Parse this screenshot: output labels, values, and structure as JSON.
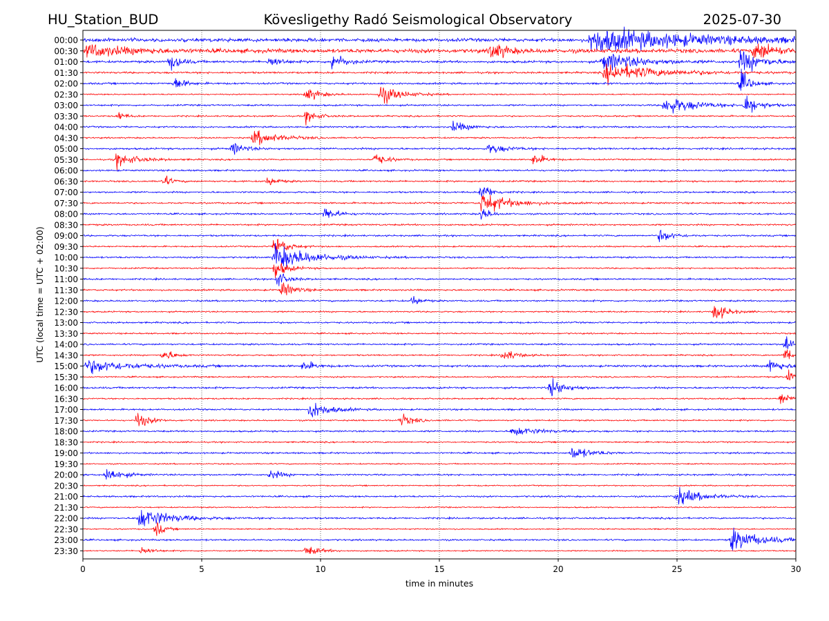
{
  "header": {
    "station": "HU_Station_BUD",
    "title": "Kövesligethy Radó Seismological Observatory",
    "date": "2025-07-30"
  },
  "chart_data": {
    "type": "line",
    "title": "Kövesligethy Radó Seismological Observatory",
    "xlabel": "time in minutes",
    "ylabel": "UTC (local time = UTC + 02:00)",
    "xlim": [
      0,
      30
    ],
    "xticks": [
      0,
      5,
      10,
      15,
      20,
      25,
      30
    ],
    "grid": "x-dotted",
    "legend": "none",
    "colors": [
      "#0000ff",
      "#ff0000"
    ],
    "rows": [
      "00:00",
      "00:30",
      "01:00",
      "01:30",
      "02:00",
      "02:30",
      "03:00",
      "03:30",
      "04:00",
      "04:30",
      "05:00",
      "05:30",
      "06:00",
      "06:30",
      "07:00",
      "07:30",
      "08:00",
      "08:30",
      "09:00",
      "09:30",
      "10:00",
      "10:30",
      "11:00",
      "11:30",
      "12:00",
      "12:30",
      "13:00",
      "13:30",
      "14:00",
      "14:30",
      "15:00",
      "15:30",
      "16:00",
      "16:30",
      "17:00",
      "17:30",
      "18:00",
      "18:30",
      "19:00",
      "19:30",
      "20:00",
      "20:30",
      "21:00",
      "21:30",
      "22:00",
      "22:30",
      "23:00",
      "23:30"
    ],
    "noise_level": [
      1.6,
      1.9,
      1.1,
      0.9,
      0.9,
      0.6,
      0.8,
      0.7,
      0.8,
      0.7,
      0.9,
      0.7,
      0.8,
      0.8,
      0.8,
      0.8,
      0.8,
      0.8,
      0.8,
      0.7,
      0.8,
      0.7,
      0.8,
      0.8,
      0.8,
      0.7,
      0.8,
      0.7,
      0.8,
      0.7,
      1.0,
      0.7,
      0.9,
      0.7,
      0.8,
      0.7,
      0.8,
      0.7,
      0.8,
      0.6,
      0.8,
      0.6,
      0.8,
      0.6,
      0.8,
      0.6,
      0.8,
      0.6
    ],
    "events": [
      {
        "row": 0,
        "t": 21.3,
        "amp": 4.0,
        "dur": 9.0
      },
      {
        "row": 1,
        "t": 0.1,
        "amp": 2.0,
        "dur": 3.5
      },
      {
        "row": 1,
        "t": 17.1,
        "amp": 3.0,
        "dur": 1.2
      },
      {
        "row": 1,
        "t": 28.2,
        "amp": 3.5,
        "dur": 1.5
      },
      {
        "row": 2,
        "t": 3.6,
        "amp": 3.0,
        "dur": 0.8
      },
      {
        "row": 2,
        "t": 7.8,
        "amp": 2.2,
        "dur": 0.8
      },
      {
        "row": 2,
        "t": 10.4,
        "amp": 3.0,
        "dur": 1.0
      },
      {
        "row": 2,
        "t": 21.8,
        "amp": 3.2,
        "dur": 3.0
      },
      {
        "row": 2,
        "t": 27.6,
        "amp": 3.5,
        "dur": 1.8
      },
      {
        "row": 3,
        "t": 21.9,
        "amp": 3.0,
        "dur": 4.5
      },
      {
        "row": 4,
        "t": 3.8,
        "amp": 2.0,
        "dur": 0.8
      },
      {
        "row": 4,
        "t": 27.6,
        "amp": 3.8,
        "dur": 0.8
      },
      {
        "row": 5,
        "t": 9.3,
        "amp": 2.2,
        "dur": 1.2
      },
      {
        "row": 5,
        "t": 12.4,
        "amp": 3.0,
        "dur": 1.8
      },
      {
        "row": 6,
        "t": 24.4,
        "amp": 3.0,
        "dur": 2.5
      },
      {
        "row": 6,
        "t": 27.8,
        "amp": 3.5,
        "dur": 1.0
      },
      {
        "row": 7,
        "t": 9.3,
        "amp": 2.0,
        "dur": 1.0
      },
      {
        "row": 7,
        "t": 1.4,
        "amp": 1.5,
        "dur": 0.6
      },
      {
        "row": 8,
        "t": 15.5,
        "amp": 1.8,
        "dur": 1.2
      },
      {
        "row": 9,
        "t": 7.1,
        "amp": 2.5,
        "dur": 2.0
      },
      {
        "row": 10,
        "t": 6.2,
        "amp": 2.0,
        "dur": 1.0
      },
      {
        "row": 10,
        "t": 17.0,
        "amp": 1.5,
        "dur": 1.5
      },
      {
        "row": 11,
        "t": 1.3,
        "amp": 2.2,
        "dur": 1.8
      },
      {
        "row": 11,
        "t": 12.2,
        "amp": 2.0,
        "dur": 1.0
      },
      {
        "row": 11,
        "t": 18.9,
        "amp": 2.2,
        "dur": 0.8
      },
      {
        "row": 13,
        "t": 3.3,
        "amp": 2.0,
        "dur": 0.6
      },
      {
        "row": 13,
        "t": 7.7,
        "amp": 1.5,
        "dur": 0.8
      },
      {
        "row": 14,
        "t": 16.7,
        "amp": 3.0,
        "dur": 0.8
      },
      {
        "row": 15,
        "t": 16.7,
        "amp": 3.5,
        "dur": 2.2
      },
      {
        "row": 16,
        "t": 10.1,
        "amp": 2.2,
        "dur": 1.0
      },
      {
        "row": 16,
        "t": 16.7,
        "amp": 2.5,
        "dur": 0.6
      },
      {
        "row": 18,
        "t": 24.2,
        "amp": 2.2,
        "dur": 1.0
      },
      {
        "row": 19,
        "t": 8.0,
        "amp": 3.5,
        "dur": 1.0
      },
      {
        "row": 20,
        "t": 8.0,
        "amp": 4.0,
        "dur": 3.0
      },
      {
        "row": 21,
        "t": 8.0,
        "amp": 3.0,
        "dur": 1.0
      },
      {
        "row": 22,
        "t": 8.1,
        "amp": 2.5,
        "dur": 0.8
      },
      {
        "row": 23,
        "t": 8.3,
        "amp": 2.5,
        "dur": 1.0
      },
      {
        "row": 24,
        "t": 13.8,
        "amp": 1.6,
        "dur": 0.6
      },
      {
        "row": 25,
        "t": 26.5,
        "amp": 3.0,
        "dur": 1.0
      },
      {
        "row": 28,
        "t": 29.5,
        "amp": 4.0,
        "dur": 0.5
      },
      {
        "row": 29,
        "t": 3.3,
        "amp": 2.2,
        "dur": 0.8
      },
      {
        "row": 29,
        "t": 17.6,
        "amp": 2.2,
        "dur": 1.0
      },
      {
        "row": 29,
        "t": 29.5,
        "amp": 3.5,
        "dur": 0.5
      },
      {
        "row": 30,
        "t": 0.1,
        "amp": 2.2,
        "dur": 3.5
      },
      {
        "row": 30,
        "t": 9.2,
        "amp": 1.8,
        "dur": 0.8
      },
      {
        "row": 30,
        "t": 28.8,
        "amp": 2.0,
        "dur": 1.2
      },
      {
        "row": 31,
        "t": 29.6,
        "amp": 2.8,
        "dur": 0.4
      },
      {
        "row": 32,
        "t": 19.6,
        "amp": 3.0,
        "dur": 1.2
      },
      {
        "row": 33,
        "t": 29.3,
        "amp": 2.5,
        "dur": 0.7
      },
      {
        "row": 34,
        "t": 9.5,
        "amp": 3.0,
        "dur": 1.5
      },
      {
        "row": 35,
        "t": 2.2,
        "amp": 2.5,
        "dur": 1.0
      },
      {
        "row": 35,
        "t": 13.3,
        "amp": 2.0,
        "dur": 1.0
      },
      {
        "row": 36,
        "t": 18.0,
        "amp": 1.6,
        "dur": 2.0
      },
      {
        "row": 38,
        "t": 20.5,
        "amp": 2.2,
        "dur": 1.5
      },
      {
        "row": 40,
        "t": 0.9,
        "amp": 2.5,
        "dur": 1.2
      },
      {
        "row": 40,
        "t": 7.8,
        "amp": 1.5,
        "dur": 1.0
      },
      {
        "row": 42,
        "t": 24.9,
        "amp": 2.8,
        "dur": 2.0
      },
      {
        "row": 44,
        "t": 2.3,
        "amp": 3.5,
        "dur": 2.5
      },
      {
        "row": 45,
        "t": 3.0,
        "amp": 2.5,
        "dur": 0.6
      },
      {
        "row": 46,
        "t": 27.2,
        "amp": 3.5,
        "dur": 2.5
      },
      {
        "row": 47,
        "t": 9.3,
        "amp": 1.6,
        "dur": 1.2
      },
      {
        "row": 47,
        "t": 2.4,
        "amp": 1.5,
        "dur": 0.8
      }
    ]
  }
}
